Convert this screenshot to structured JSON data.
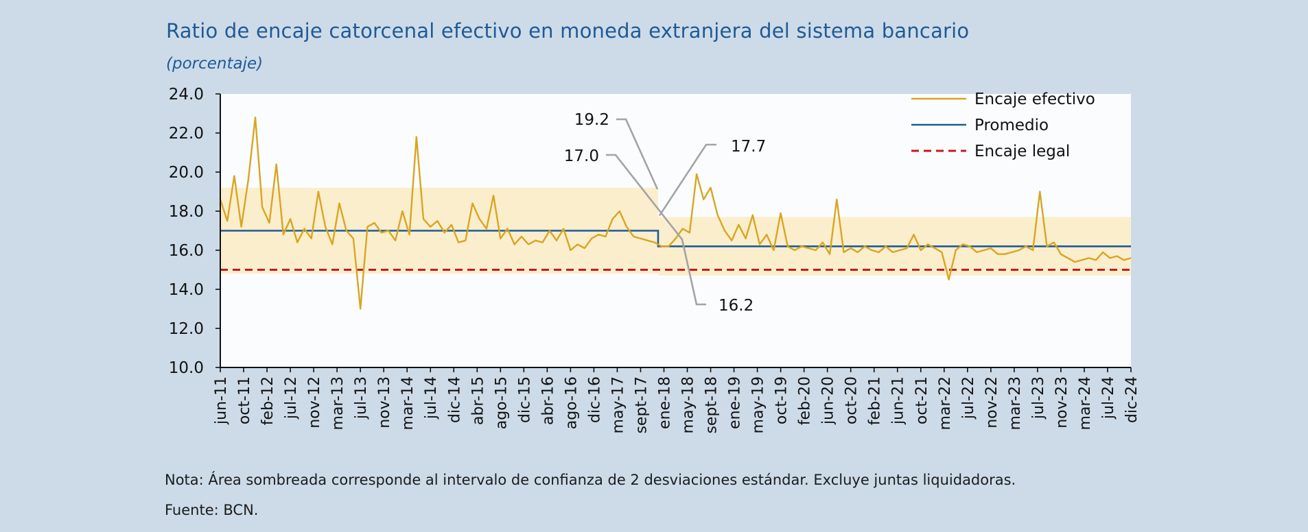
{
  "title": "Ratio de encaje catorcenal efectivo en moneda extranjera del sistema bancario",
  "subtitle": "(porcentaje)",
  "note": "Nota: Área sombreada corresponde al intervalo de confianza de 2 desviaciones estándar. Excluye juntas liquidadoras.",
  "source": "Fuente: BCN.",
  "colors": {
    "background": "#cddbe8",
    "plot_background": "#fbfcfe",
    "band": "#fbeecd",
    "encaje_efectivo": "#d9a521",
    "promedio": "#1f5a95",
    "encaje_legal": "#c61a1a",
    "annotation_line": "#a3a3a3"
  },
  "chart_data": {
    "type": "line",
    "xlabel": "",
    "ylabel": "",
    "ylim": [
      10.0,
      24.0
    ],
    "y_ticks": [
      "10.0",
      "12.0",
      "14.0",
      "16.0",
      "18.0",
      "20.0",
      "22.0",
      "24.0"
    ],
    "x_tick_labels": [
      "jun-11",
      "oct-11",
      "feb-12",
      "jul-12",
      "nov-12",
      "mar-13",
      "jul-13",
      "nov-13",
      "mar-14",
      "jul-14",
      "dic-14",
      "abr-15",
      "ago-15",
      "dic-15",
      "abr-16",
      "ago-16",
      "dic-16",
      "may-17",
      "sept-17",
      "ene-18",
      "may-18",
      "sept-18",
      "ene-19",
      "may-19",
      "oct-19",
      "feb-20",
      "jun-20",
      "oct-20",
      "feb-21",
      "jun-21",
      "oct-21",
      "mar-22",
      "jul-22",
      "nov-22",
      "mar-23",
      "jul-23",
      "nov-23",
      "mar-24",
      "jul-24",
      "dic-24"
    ],
    "grid": false,
    "legend_position": "top-right",
    "legend": [
      "Encaje efectivo",
      "Promedio",
      "Encaje legal"
    ],
    "annotations": [
      "19.2",
      "17.0",
      "17.7",
      "16.2"
    ],
    "series": [
      {
        "name": "Encaje efectivo",
        "x_tick_index": [
          0,
          0.3,
          0.6,
          0.9,
          1.2,
          1.5,
          1.8,
          2.1,
          2.4,
          2.7,
          3.0,
          3.3,
          3.6,
          3.9,
          4.2,
          4.5,
          4.8,
          5.1,
          5.4,
          5.7,
          6.0,
          6.3,
          6.6,
          6.9,
          7.2,
          7.5,
          7.8,
          8.1,
          8.4,
          8.7,
          9.0,
          9.3,
          9.6,
          9.9,
          10.2,
          10.5,
          10.8,
          11.1,
          11.4,
          11.7,
          12.0,
          12.3,
          12.6,
          12.9,
          13.2,
          13.5,
          13.8,
          14.1,
          14.4,
          14.7,
          15.0,
          15.3,
          15.6,
          15.9,
          16.2,
          16.5,
          16.8,
          17.1,
          17.4,
          17.7,
          18.0,
          18.3,
          18.6,
          18.9,
          19.2,
          19.5,
          19.8,
          20.1,
          20.4,
          20.7,
          21.0,
          21.3,
          21.6,
          21.9,
          22.2,
          22.5,
          22.8,
          23.1,
          23.4,
          23.7,
          24.0,
          24.3,
          24.6,
          24.9,
          25.2,
          25.5,
          25.8,
          26.1,
          26.4,
          26.7,
          27.0,
          27.3,
          27.6,
          27.9,
          28.2,
          28.5,
          28.8,
          29.1,
          29.4,
          29.7,
          30.0,
          30.3,
          30.6,
          30.9,
          31.2,
          31.5,
          31.8,
          32.1,
          32.4,
          32.7,
          33.0,
          33.3,
          33.6,
          33.9,
          34.2,
          34.5,
          34.8,
          35.1,
          35.4,
          35.7,
          36.0,
          36.3,
          36.6,
          36.9,
          37.2,
          37.5,
          37.8,
          38.1,
          38.4,
          38.7,
          39.0
        ],
        "values": [
          18.6,
          17.5,
          19.8,
          17.2,
          19.6,
          22.8,
          18.2,
          17.4,
          20.4,
          16.8,
          17.6,
          16.4,
          17.1,
          16.6,
          19.0,
          17.2,
          16.3,
          18.4,
          17.0,
          16.6,
          13.0,
          17.2,
          17.4,
          16.9,
          17.0,
          16.5,
          18.0,
          16.8,
          21.8,
          17.6,
          17.2,
          17.5,
          16.9,
          17.3,
          16.4,
          16.5,
          18.4,
          17.6,
          17.1,
          18.8,
          16.6,
          17.1,
          16.3,
          16.7,
          16.3,
          16.5,
          16.4,
          17.0,
          16.5,
          17.1,
          16.0,
          16.3,
          16.1,
          16.6,
          16.8,
          16.7,
          17.6,
          18.0,
          17.2,
          16.7,
          16.6,
          16.5,
          16.4,
          16.2,
          16.2,
          16.6,
          17.1,
          16.9,
          19.9,
          18.6,
          19.2,
          17.8,
          17.0,
          16.5,
          17.3,
          16.6,
          17.8,
          16.3,
          16.8,
          16.0,
          17.9,
          16.2,
          16.0,
          16.2,
          16.1,
          16.0,
          16.4,
          15.8,
          18.6,
          15.9,
          16.1,
          15.9,
          16.2,
          16.0,
          15.9,
          16.2,
          15.9,
          16.0,
          16.1,
          16.8,
          16.0,
          16.3,
          16.1,
          15.9,
          14.5,
          16.0,
          16.3,
          16.2,
          15.9,
          16.0,
          16.1,
          15.8,
          15.8,
          15.9,
          16.0,
          16.2,
          16.0,
          19.0,
          16.2,
          16.4,
          15.8,
          15.6,
          15.4,
          15.5,
          15.6,
          15.5,
          15.9,
          15.6,
          15.7,
          15.5,
          15.6
        ]
      },
      {
        "name": "Promedio",
        "segments": [
          {
            "from_tick_index": 0,
            "to_tick_index": 18.75,
            "value": 17.0
          },
          {
            "from_tick_index": 18.75,
            "to_tick_index": 39,
            "value": 16.2
          }
        ]
      },
      {
        "name": "Encaje legal",
        "value": 15.0
      }
    ],
    "confidence_band": [
      {
        "from_tick_index": 0,
        "to_tick_index": 18.75,
        "low": 14.8,
        "high": 19.2
      },
      {
        "from_tick_index": 18.75,
        "to_tick_index": 39,
        "low": 14.7,
        "high": 17.7
      }
    ]
  }
}
